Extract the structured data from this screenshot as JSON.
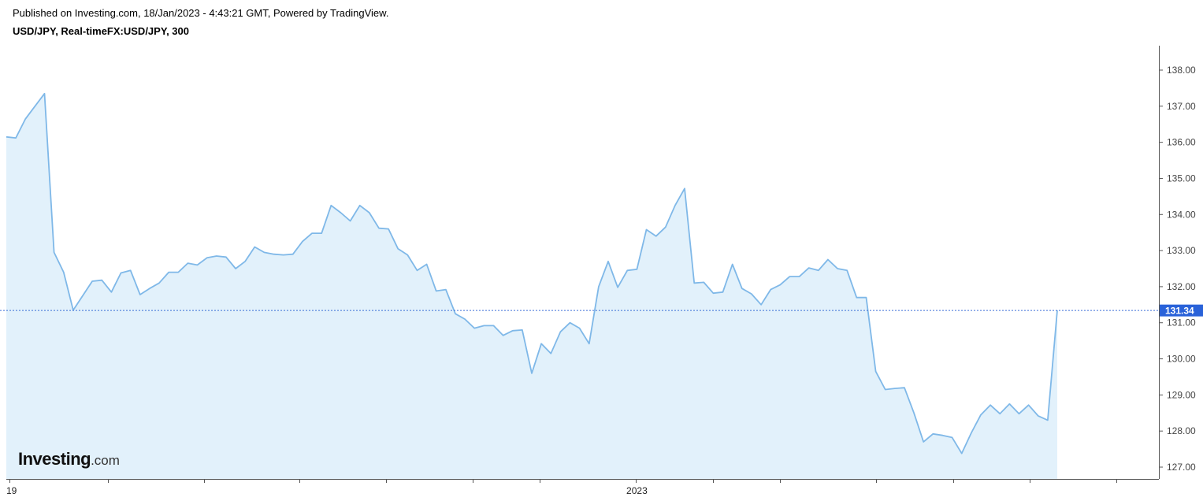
{
  "header": {
    "published": "Published on Investing.com, 18/Jan/2023 - 4:43:21 GMT, Powered by TradingView.",
    "symbol": "USD/JPY, Real-timeFX:USD/JPY, 300"
  },
  "logo": {
    "brand": "Investing",
    "tld": ".com"
  },
  "colors": {
    "line": "#7fb8e8",
    "fill": "#e2f1fb",
    "last_price_bg": "#2962d9",
    "last_price_line": "#3d6fd6"
  },
  "chart_data": {
    "type": "area",
    "symbol": "USD/JPY",
    "timeframe": "300",
    "ylim": [
      126.7,
      138.6
    ],
    "y_ticks": [
      "127.00",
      "128.00",
      "129.00",
      "130.00",
      "131.00",
      "132.00",
      "133.00",
      "134.00",
      "135.00",
      "136.00",
      "137.00",
      "138.00"
    ],
    "x_tick_labels": [
      {
        "label": "19",
        "index": 0
      },
      {
        "label": "2023",
        "index": 66
      }
    ],
    "last_price": "131.34",
    "values": [
      136.15,
      136.12,
      136.65,
      137.0,
      137.35,
      132.95,
      132.4,
      131.35,
      131.75,
      132.15,
      132.18,
      131.85,
      132.38,
      132.45,
      131.78,
      131.95,
      132.1,
      132.4,
      132.4,
      132.65,
      132.6,
      132.8,
      132.85,
      132.82,
      132.5,
      132.7,
      133.1,
      132.95,
      132.9,
      132.88,
      132.9,
      133.25,
      133.48,
      133.48,
      134.25,
      134.05,
      133.82,
      134.25,
      134.05,
      133.62,
      133.6,
      133.05,
      132.88,
      132.45,
      132.62,
      131.88,
      131.92,
      131.25,
      131.1,
      130.85,
      130.92,
      130.92,
      130.65,
      130.78,
      130.8,
      129.6,
      130.42,
      130.15,
      130.75,
      131.0,
      130.85,
      130.42,
      132.0,
      132.7,
      131.98,
      132.45,
      132.48,
      133.58,
      133.4,
      133.65,
      134.25,
      134.72,
      132.1,
      132.12,
      131.82,
      131.85,
      132.62,
      131.95,
      131.8,
      131.5,
      131.92,
      132.05,
      132.28,
      132.28,
      132.52,
      132.45,
      132.75,
      132.5,
      132.45,
      131.7,
      131.7,
      129.65,
      129.15,
      129.18,
      129.2,
      128.5,
      127.7,
      127.92,
      127.88,
      127.82,
      127.38,
      127.95,
      128.45,
      128.72,
      128.48,
      128.75,
      128.48,
      128.72,
      128.42,
      128.3,
      131.34
    ]
  }
}
